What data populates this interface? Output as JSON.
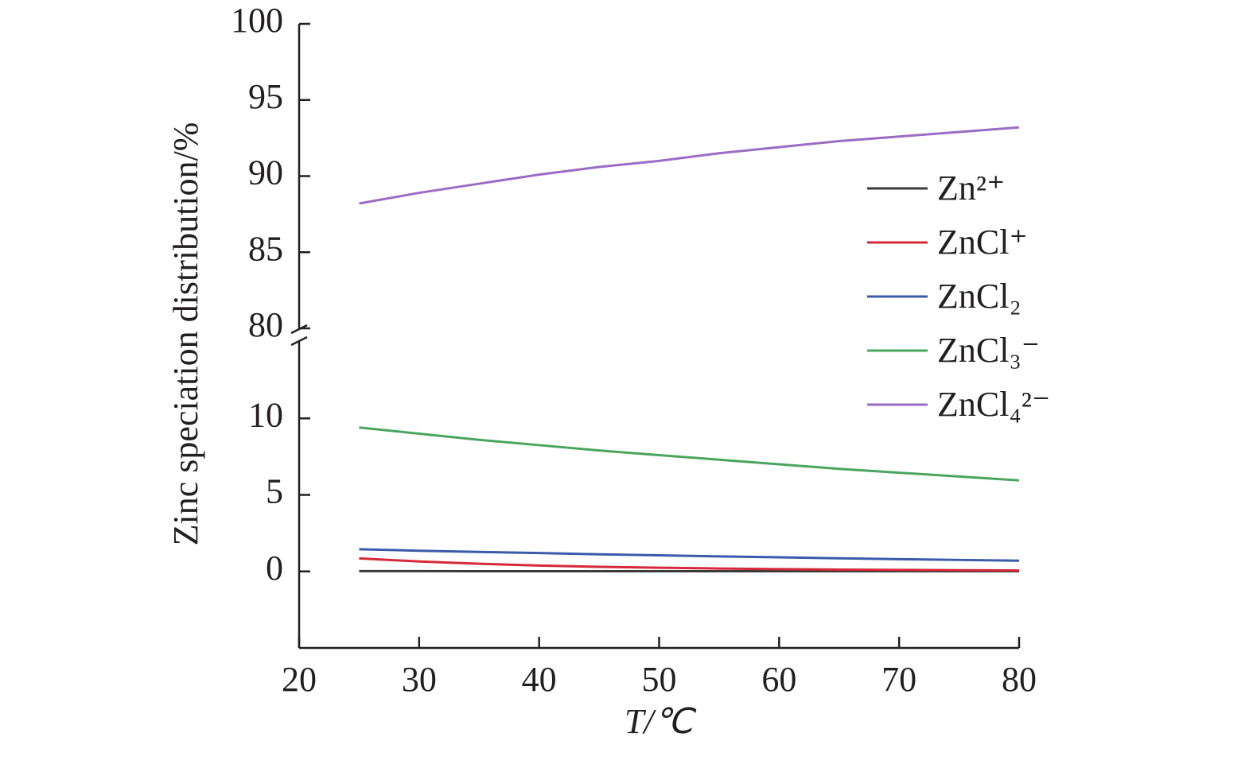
{
  "chart_data": {
    "type": "line",
    "x_label": "T/℃",
    "y_label": "Zinc speciation distribution/%",
    "x": [
      25,
      30,
      35,
      40,
      45,
      50,
      55,
      60,
      65,
      70,
      75,
      80
    ],
    "xlim": [
      20,
      80
    ],
    "xticks": [
      20,
      30,
      40,
      50,
      60,
      70,
      80
    ],
    "ylim": [
      -5,
      15
    ],
    "yticks": [
      0,
      5,
      10
    ],
    "y2lim": [
      80,
      100
    ],
    "y2ticks": [
      80,
      85,
      90,
      95,
      100
    ],
    "axis_break": true,
    "series": [
      {
        "name": "Zn²⁺",
        "color": "#3a3a3a",
        "values": [
          0.02,
          0.02,
          0.01,
          0.01,
          0.01,
          0.01,
          0.01,
          0.01,
          0.01,
          0.01,
          0.01,
          0.01
        ]
      },
      {
        "name": "ZnCl⁺",
        "color": "#d6293a",
        "values": [
          0.85,
          0.65,
          0.5,
          0.38,
          0.3,
          0.24,
          0.19,
          0.15,
          0.12,
          0.1,
          0.08,
          0.06
        ]
      },
      {
        "name": "ZnCl₂",
        "color": "#3a5bab",
        "values": [
          1.45,
          1.35,
          1.27,
          1.2,
          1.12,
          1.05,
          0.98,
          0.92,
          0.86,
          0.8,
          0.75,
          0.7
        ]
      },
      {
        "name": "ZnCl₃⁻",
        "color": "#4aa55e",
        "values": [
          9.4,
          9.0,
          8.6,
          8.25,
          7.9,
          7.6,
          7.3,
          7.0,
          6.7,
          6.45,
          6.2,
          5.95
        ]
      },
      {
        "name": "ZnCl₄²⁻",
        "color": "#9b6cc4",
        "axis": "y2",
        "values": [
          88.2,
          88.9,
          89.5,
          90.1,
          90.6,
          91.0,
          91.5,
          91.9,
          92.3,
          92.6,
          92.9,
          93.2
        ]
      }
    ]
  }
}
